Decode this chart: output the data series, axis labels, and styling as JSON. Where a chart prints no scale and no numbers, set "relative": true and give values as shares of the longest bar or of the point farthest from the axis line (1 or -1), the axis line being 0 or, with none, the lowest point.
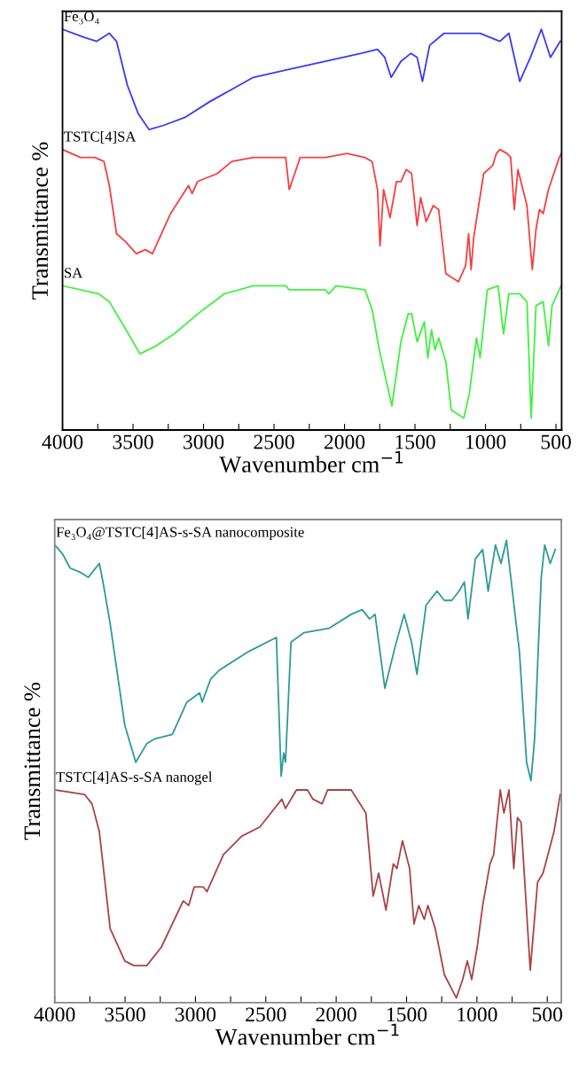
{
  "chart_data": [
    {
      "type": "line",
      "relative": true,
      "xlabel": "Wavenumber cm$^{−1}$",
      "ylabel": "Transmittance %",
      "xlim": [
        4000,
        460
      ],
      "xticks": [
        4000,
        {
          "value": 3750,
          "label": null
        },
        3500,
        {
          "value": 3250,
          "label": null
        },
        3000,
        {
          "value": 2750,
          "label": null
        },
        2500,
        {
          "value": 2250,
          "label": null
        },
        2000,
        {
          "value": 1750,
          "label": null
        },
        1500,
        {
          "value": 1250,
          "label": null
        },
        1000,
        {
          "value": 750,
          "label": null
        },
        500
      ],
      "tick_labels": "x",
      "grid": false,
      "legend": false,
      "series": [
        {
          "name": "Fe₃O₄",
          "color": "#3a3af5",
          "x": [
            4000,
            3847,
            3757,
            3668,
            3617,
            3540,
            3464,
            3387,
            3285,
            3132,
            2953,
            2851,
            2647,
            2392,
            2136,
            1881,
            1766,
            1715,
            1669,
            1600,
            1529,
            1485,
            1447,
            1396,
            1294,
            1038,
            898,
            834,
            757,
            681,
            604,
            539,
            470
          ],
          "values": [
            1.0,
            0.98,
            0.97,
            0.99,
            0.97,
            0.86,
            0.79,
            0.75,
            0.76,
            0.78,
            0.82,
            0.84,
            0.88,
            0.9,
            0.92,
            0.94,
            0.95,
            0.93,
            0.88,
            0.92,
            0.94,
            0.93,
            0.87,
            0.96,
            0.99,
            0.99,
            0.97,
            0.99,
            0.87,
            0.93,
            1.0,
            0.93,
            0.97
          ]
        },
        {
          "name": "TSTC[4]SA",
          "color": "#f54040",
          "x": [
            4000,
            3872,
            3770,
            3706,
            3668,
            3617,
            3553,
            3477,
            3413,
            3362,
            3234,
            3106,
            3081,
            3043,
            2902,
            2800,
            2647,
            2417,
            2392,
            2353,
            2315,
            2136,
            1983,
            1855,
            1804,
            1766,
            1748,
            1723,
            1677,
            1631,
            1600,
            1562,
            1524,
            1485,
            1460,
            1421,
            1370,
            1332,
            1281,
            1192,
            1141,
            1120,
            1102,
            1084,
            1013,
            949,
            923,
            898,
            847,
            821,
            796,
            770,
            706,
            668,
            642,
            617,
            591,
            553,
            477,
            462
          ],
          "values": [
            0.7,
            0.68,
            0.68,
            0.67,
            0.61,
            0.49,
            0.47,
            0.44,
            0.45,
            0.44,
            0.54,
            0.61,
            0.59,
            0.62,
            0.64,
            0.67,
            0.68,
            0.68,
            0.6,
            0.64,
            0.68,
            0.68,
            0.69,
            0.68,
            0.67,
            0.6,
            0.46,
            0.6,
            0.53,
            0.62,
            0.62,
            0.65,
            0.64,
            0.51,
            0.58,
            0.52,
            0.56,
            0.55,
            0.39,
            0.37,
            0.41,
            0.49,
            0.4,
            0.48,
            0.64,
            0.66,
            0.69,
            0.7,
            0.69,
            0.68,
            0.55,
            0.65,
            0.56,
            0.4,
            0.5,
            0.55,
            0.54,
            0.6,
            0.68,
            0.69
          ]
        },
        {
          "name": "SA",
          "color": "#40f040",
          "x": [
            4000,
            3745,
            3668,
            3566,
            3451,
            3336,
            3208,
            3004,
            2851,
            2647,
            2417,
            2392,
            2136,
            2111,
            2060,
            1855,
            1804,
            1753,
            1664,
            1600,
            1549,
            1524,
            1485,
            1434,
            1409,
            1383,
            1358,
            1332,
            1281,
            1243,
            1154,
            1115,
            1064,
            1038,
            987,
            911,
            872,
            834,
            757,
            706,
            676,
            642,
            591,
            553,
            528,
            464
          ],
          "values": [
            0.36,
            0.34,
            0.32,
            0.26,
            0.19,
            0.21,
            0.24,
            0.3,
            0.34,
            0.36,
            0.36,
            0.35,
            0.35,
            0.34,
            0.36,
            0.35,
            0.3,
            0.2,
            0.06,
            0.22,
            0.29,
            0.29,
            0.22,
            0.27,
            0.18,
            0.25,
            0.2,
            0.23,
            0.17,
            0.05,
            0.03,
            0.09,
            0.23,
            0.18,
            0.35,
            0.36,
            0.24,
            0.34,
            0.34,
            0.32,
            0.03,
            0.31,
            0.32,
            0.21,
            0.31,
            0.36
          ]
        }
      ]
    },
    {
      "type": "line",
      "relative": true,
      "xlabel": "Wavenumber cm$^{−1}$",
      "ylabel": "Transmittance %",
      "xlim": [
        4000,
        400
      ],
      "xticks": [
        4000,
        {
          "value": 3750,
          "label": null
        },
        3500,
        {
          "value": 3250,
          "label": null
        },
        3000,
        {
          "value": 2750,
          "label": null
        },
        2500,
        {
          "value": 2250,
          "label": null
        },
        2000,
        {
          "value": 1750,
          "label": null
        },
        1500,
        {
          "value": 1250,
          "label": null
        },
        1000,
        {
          "value": 750,
          "label": null
        },
        500
      ],
      "tick_labels": "x",
      "grid": false,
      "legend": false,
      "series": [
        {
          "name": "Fe₃O₄@TSTC[4]AS-s-SA nanocomposite",
          "color": "#2e9a9a",
          "x": [
            4000,
            3943,
            3891,
            3813,
            3761,
            3683,
            3657,
            3606,
            3502,
            3424,
            3346,
            3294,
            3164,
            3061,
            2970,
            2952,
            2892,
            2827,
            2619,
            2425,
            2391,
            2373,
            2360,
            2321,
            2230,
            2049,
            1893,
            1815,
            1763,
            1724,
            1654,
            1581,
            1517,
            1465,
            1426,
            1361,
            1283,
            1231,
            1179,
            1127,
            1089,
            1063,
            1011,
            959,
            920,
            868,
            829,
            790,
            698,
            647,
            616,
            590,
            543,
            518,
            479,
            443
          ],
          "values": [
            0.99,
            0.97,
            0.94,
            0.93,
            0.92,
            0.95,
            0.91,
            0.82,
            0.6,
            0.52,
            0.56,
            0.57,
            0.58,
            0.65,
            0.67,
            0.65,
            0.7,
            0.72,
            0.76,
            0.79,
            0.49,
            0.54,
            0.52,
            0.78,
            0.8,
            0.81,
            0.84,
            0.85,
            0.83,
            0.84,
            0.68,
            0.77,
            0.84,
            0.78,
            0.71,
            0.86,
            0.89,
            0.87,
            0.87,
            0.89,
            0.91,
            0.83,
            0.96,
            0.98,
            0.89,
            0.99,
            0.95,
            1.0,
            0.76,
            0.52,
            0.48,
            0.57,
            0.92,
            0.99,
            0.95,
            0.98
          ]
        },
        {
          "name": "TSTC[4]AS-s-SA nanogel",
          "color": "#a84444",
          "x": [
            4000,
            3787,
            3735,
            3683,
            3606,
            3502,
            3437,
            3346,
            3242,
            3087,
            3048,
            3009,
            2944,
            2918,
            2801,
            2671,
            2542,
            2464,
            2386,
            2360,
            2282,
            2204,
            2165,
            2100,
            2061,
            1893,
            1789,
            1737,
            1698,
            1646,
            1594,
            1568,
            1529,
            1478,
            1447,
            1413,
            1374,
            1348,
            1296,
            1231,
            1146,
            1101,
            1068,
            1037,
            998,
            959,
            907,
            881,
            834,
            808,
            772,
            738,
            712,
            686,
            621,
            569,
            530,
            452,
            408
          ],
          "values": [
            0.46,
            0.45,
            0.43,
            0.37,
            0.16,
            0.09,
            0.08,
            0.08,
            0.12,
            0.22,
            0.21,
            0.25,
            0.25,
            0.24,
            0.32,
            0.36,
            0.38,
            0.41,
            0.44,
            0.42,
            0.46,
            0.46,
            0.44,
            0.43,
            0.46,
            0.46,
            0.41,
            0.23,
            0.28,
            0.2,
            0.3,
            0.29,
            0.35,
            0.29,
            0.17,
            0.21,
            0.18,
            0.21,
            0.16,
            0.06,
            0.01,
            0.05,
            0.09,
            0.05,
            0.12,
            0.21,
            0.3,
            0.32,
            0.46,
            0.41,
            0.46,
            0.29,
            0.4,
            0.39,
            0.07,
            0.26,
            0.28,
            0.37,
            0.45
          ]
        }
      ]
    }
  ]
}
